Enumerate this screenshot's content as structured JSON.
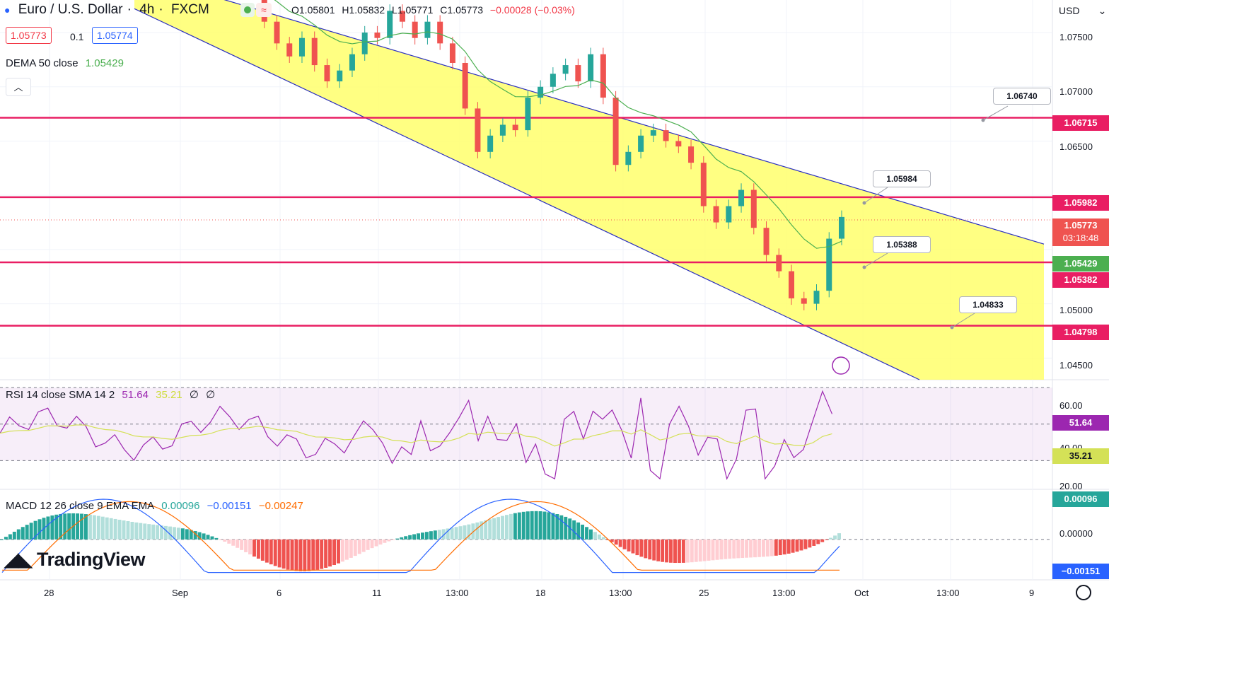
{
  "header": {
    "symbol": "Euro / U.S. Dollar",
    "interval": "4h",
    "source": "FXCM",
    "ohlc": {
      "o": "O1.05801",
      "h": "H1.05832",
      "l": "L1.05771",
      "c": "C1.05773",
      "chg": "−0.00028 (−0.03%)"
    },
    "currency": "USD",
    "sell_price": "1.05773",
    "spread": "0.1",
    "buy_price": "1.05774"
  },
  "indicators": {
    "dema": {
      "label": "DEMA 50 close",
      "value": "1.05429"
    },
    "rsi": {
      "label": "RSI 14 close SMA 14 2",
      "value1": "51.64",
      "value2": "35.21",
      "extra1": "∅",
      "extra2": "∅"
    },
    "macd": {
      "label": "MACD 12 26 close 9 EMA EMA",
      "value1": "0.00096",
      "value2": "−0.00151",
      "value3": "−0.00247"
    }
  },
  "price_axis": {
    "ticks": [
      "1.07500",
      "1.07000",
      "1.06500",
      "1.05000",
      "1.04500"
    ],
    "current_price": "1.05773",
    "countdown": "03:18:48",
    "dema_tag": "1.05429"
  },
  "levels": [
    {
      "price": 1.06715,
      "label": "1.06715"
    },
    {
      "price": 1.05982,
      "label": "1.05982"
    },
    {
      "price": 1.05382,
      "label": "1.05382"
    },
    {
      "price": 1.04798,
      "label": "1.04798"
    }
  ],
  "callouts": [
    {
      "label": "1.06740"
    },
    {
      "label": "1.05984"
    },
    {
      "label": "1.05388"
    },
    {
      "label": "1.04833"
    }
  ],
  "rsi_axis": {
    "ticks": [
      "60.00",
      "40.00",
      "20.00"
    ],
    "rsi_tag": "51.64",
    "sma_tag": "35.21"
  },
  "macd_axis": {
    "ticks": [
      "0.00000"
    ],
    "macd_tag": "0.00096",
    "signal_tag": "−0.00151"
  },
  "time_axis": [
    "28",
    "Sep",
    "6",
    "11",
    "13:00",
    "18",
    "13:00",
    "25",
    "13:00",
    "Oct",
    "13:00",
    "9"
  ],
  "logo": "TradingView",
  "colors": {
    "up": "#26a69a",
    "down": "#ef5350",
    "channel": "#ffff66",
    "level": "#e91e63",
    "dema": "#4caf50",
    "rsi": "#9c27b0",
    "rsi_sma": "#d4e157",
    "macd": "#2962ff",
    "signal": "#ff6d00"
  },
  "chart_data": {
    "type": "candlestick",
    "price_range": [
      1.043,
      1.078
    ],
    "levels": [
      1.06715,
      1.05982,
      1.05382,
      1.04798
    ],
    "channel": {
      "upper": [
        [
          "start",
          1.0805
        ],
        [
          "end",
          1.0555
        ]
      ],
      "lower": [
        [
          "start",
          1.0772
        ],
        [
          "end",
          1.0435
        ]
      ]
    },
    "close_series": [
      1.0793,
      1.076,
      1.074,
      1.0728,
      1.0745,
      1.072,
      1.0705,
      1.0715,
      1.073,
      1.075,
      1.0745,
      1.077,
      1.076,
      1.0745,
      1.076,
      1.074,
      1.0722,
      1.068,
      1.064,
      1.0655,
      1.0665,
      1.066,
      1.069,
      1.07,
      1.0712,
      1.072,
      1.0705,
      1.073,
      1.069,
      1.0628,
      1.064,
      1.0655,
      1.066,
      1.065,
      1.0645,
      1.063,
      1.059,
      1.0575,
      1.059,
      1.0605,
      1.057,
      1.0545,
      1.053,
      1.0505,
      1.05,
      1.0512,
      1.056,
      1.058
    ],
    "rsi_range": [
      15,
      72
    ],
    "macd_range": [
      -0.0033,
      0.004
    ]
  }
}
